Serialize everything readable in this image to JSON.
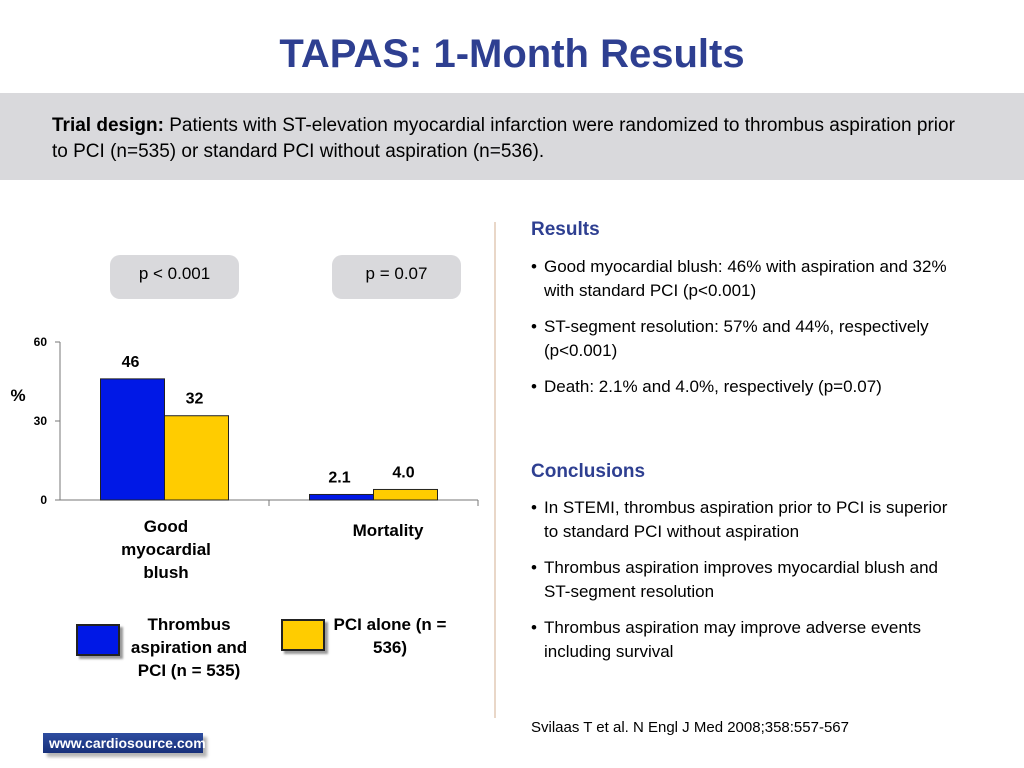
{
  "title": "TAPAS: 1-Month Results",
  "trial_design": {
    "label": "Trial design:",
    "text": "Patients with ST-elevation myocardial infarction were randomized to thrombus aspiration prior to PCI (n=535) or standard PCI without aspiration (n=536)."
  },
  "pvalues": [
    "p < 0.001",
    "p = 0.07"
  ],
  "colors": {
    "aspiration": "#0018e6",
    "pci_alone": "#ffcc00",
    "title": "#2e3f91"
  },
  "chart_data": {
    "type": "bar",
    "ylabel": "%",
    "ylim": [
      0,
      60
    ],
    "yticks": [
      "0",
      "30",
      "60"
    ],
    "categories": [
      "Good myocardial blush",
      "Mortality"
    ],
    "series": [
      {
        "name": "Thrombus aspiration and PCI (n = 535)",
        "values": [
          46,
          2.1
        ],
        "labels": [
          "46",
          "2.1"
        ]
      },
      {
        "name": "PCI alone (n = 536)",
        "values": [
          32,
          4.0
        ],
        "labels": [
          "32",
          "4.0"
        ]
      }
    ]
  },
  "legend": [
    {
      "label": "Thrombus aspiration and PCI (n = 535)"
    },
    {
      "label": "PCI alone (n = 536)"
    }
  ],
  "results": {
    "heading": "Results",
    "items": [
      "Good myocardial blush: 46% with aspiration and 32% with standard PCI (p<0.001)",
      "ST-segment resolution: 57% and 44%, respectively (p<0.001)",
      "Death: 2.1% and 4.0%, respectively (p=0.07)"
    ]
  },
  "conclusions": {
    "heading": "Conclusions",
    "items": [
      "In STEMI, thrombus aspiration prior to PCI is superior to standard PCI without aspiration",
      "Thrombus aspiration improves myocardial blush and ST-segment resolution",
      "Thrombus aspiration may improve adverse events including survival"
    ]
  },
  "citation": "Svilaas T et al. N Engl J Med 2008;358:557-567",
  "logo_text": "www.cardiosource.com"
}
